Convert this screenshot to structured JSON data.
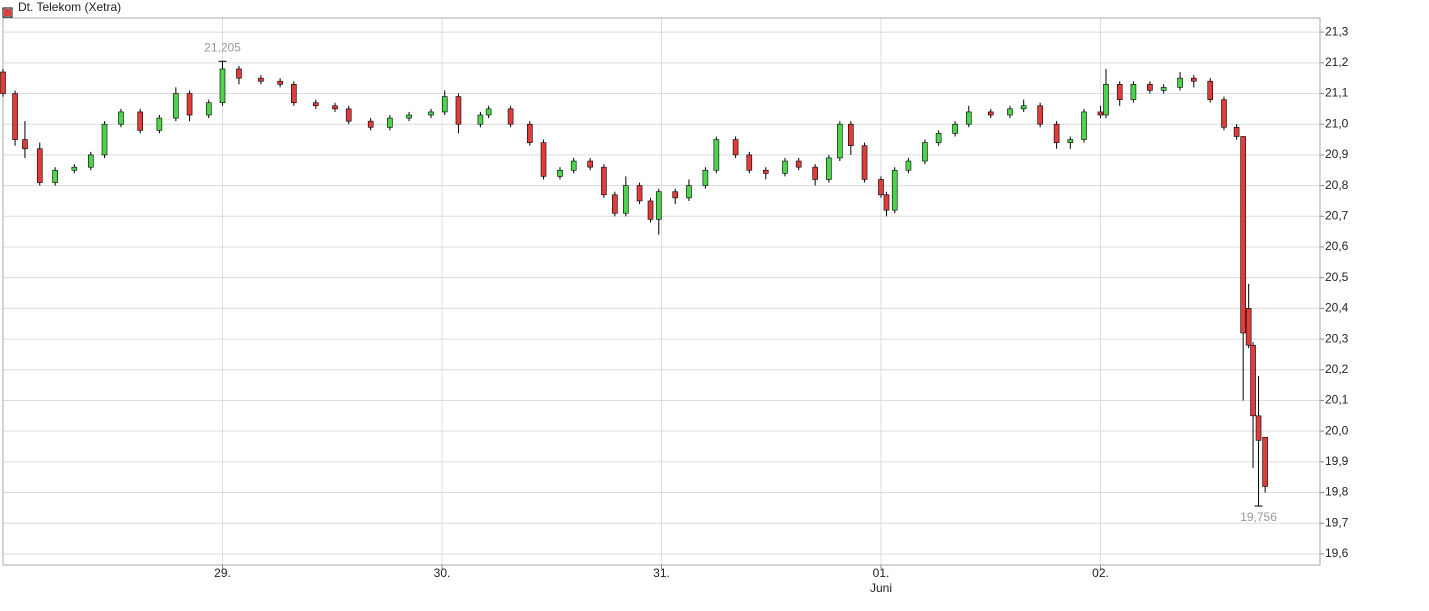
{
  "chart_data": {
    "type": "candlestick",
    "name": "Dt. Telekom (Xetra)",
    "legend_color": "#e03c3c",
    "color_up": "#4cd44c",
    "color_down": "#e03c3c",
    "grid": true,
    "x": [
      0,
      2.2,
      4,
      6.7,
      9.5,
      13,
      16,
      18.5,
      21.5,
      25,
      28.5,
      31.5,
      34,
      37.5,
      40,
      43,
      47,
      50.5,
      53,
      57,
      60.5,
      63,
      67,
      70.5,
      74,
      78,
      80.5,
      83,
      87,
      88.5,
      92.5,
      96,
      98.5,
      101.5,
      104,
      107,
      109.5,
      111.5,
      113.5,
      116,
      118,
      119.5,
      122.5,
      125,
      128,
      130,
      133.5,
      136,
      139,
      142.5,
      145,
      148,
      150.5,
      152.5,
      154.5,
      157,
      160,
      161,
      162.5,
      165,
      168,
      170.5,
      173.5,
      176,
      180,
      183.5,
      186,
      189,
      192,
      194.5,
      197,
      200,
      201,
      203.5,
      206,
      209,
      211.5,
      214.5,
      217,
      220,
      222.5,
      224.8,
      226,
      227,
      227.8,
      228.8,
      230
    ],
    "open": [
      21.17,
      21.1,
      20.95,
      20.92,
      20.81,
      20.85,
      20.86,
      20.9,
      21.0,
      21.04,
      20.98,
      21.02,
      21.1,
      21.03,
      21.07,
      21.18,
      21.15,
      21.14,
      21.13,
      21.07,
      21.06,
      21.05,
      21.01,
      20.99,
      21.02,
      21.03,
      21.04,
      21.09,
      21.0,
      21.03,
      21.05,
      21.0,
      20.94,
      20.83,
      20.85,
      20.88,
      20.86,
      20.77,
      20.71,
      20.8,
      20.75,
      20.69,
      20.78,
      20.76,
      20.8,
      20.85,
      20.95,
      20.9,
      20.85,
      20.84,
      20.88,
      20.86,
      20.82,
      20.89,
      21.0,
      20.93,
      20.82,
      20.77,
      20.72,
      20.85,
      20.88,
      20.94,
      20.97,
      21.0,
      21.04,
      21.03,
      21.05,
      21.06,
      21.0,
      20.94,
      20.95,
      21.04,
      21.03,
      21.13,
      21.08,
      21.13,
      21.11,
      21.12,
      21.15,
      21.14,
      21.08,
      20.99,
      20.96,
      20.4,
      20.28,
      20.05,
      19.98
    ],
    "high": [
      21.18,
      21.11,
      21.01,
      20.94,
      20.86,
      20.87,
      20.91,
      21.01,
      21.05,
      21.05,
      21.03,
      21.12,
      21.11,
      21.08,
      21.205,
      21.19,
      21.16,
      21.15,
      21.14,
      21.08,
      21.07,
      21.06,
      21.02,
      21.03,
      21.04,
      21.05,
      21.11,
      21.1,
      21.04,
      21.06,
      21.06,
      21.01,
      20.95,
      20.86,
      20.89,
      20.89,
      20.87,
      20.78,
      20.83,
      20.81,
      20.76,
      20.79,
      20.79,
      20.82,
      20.86,
      20.96,
      20.96,
      20.91,
      20.86,
      20.89,
      20.89,
      20.87,
      20.9,
      21.01,
      21.01,
      20.94,
      20.83,
      20.78,
      20.86,
      20.89,
      20.95,
      20.98,
      21.01,
      21.06,
      21.05,
      21.06,
      21.08,
      21.07,
      21.01,
      20.96,
      21.05,
      21.06,
      21.18,
      21.14,
      21.14,
      21.14,
      21.13,
      21.17,
      21.16,
      21.15,
      21.09,
      21.0,
      20.96,
      20.48,
      20.29,
      20.18,
      19.98
    ],
    "low": [
      21.09,
      20.93,
      20.89,
      20.8,
      20.8,
      20.84,
      20.85,
      20.89,
      20.99,
      20.97,
      20.97,
      21.01,
      21.01,
      21.02,
      21.06,
      21.13,
      21.13,
      21.12,
      21.06,
      21.05,
      21.04,
      21.0,
      20.98,
      20.98,
      21.01,
      21.02,
      21.03,
      20.97,
      20.99,
      21.02,
      20.99,
      20.93,
      20.82,
      20.82,
      20.84,
      20.85,
      20.76,
      20.7,
      20.7,
      20.74,
      20.68,
      20.64,
      20.74,
      20.75,
      20.79,
      20.84,
      20.89,
      20.84,
      20.82,
      20.83,
      20.85,
      20.8,
      20.81,
      20.88,
      20.9,
      20.81,
      20.76,
      20.7,
      20.71,
      20.84,
      20.87,
      20.93,
      20.96,
      20.99,
      21.02,
      21.02,
      21.04,
      20.99,
      20.92,
      20.92,
      20.94,
      21.02,
      21.02,
      21.06,
      21.07,
      21.1,
      21.1,
      21.11,
      21.12,
      21.07,
      20.98,
      20.95,
      20.1,
      20.27,
      19.88,
      19.756,
      19.8
    ],
    "close": [
      21.1,
      20.95,
      20.92,
      20.81,
      20.85,
      20.86,
      20.9,
      21.0,
      21.04,
      20.98,
      21.02,
      21.1,
      21.03,
      21.07,
      21.18,
      21.15,
      21.14,
      21.13,
      21.07,
      21.06,
      21.05,
      21.01,
      20.99,
      21.02,
      21.03,
      21.04,
      21.09,
      21.0,
      21.03,
      21.05,
      21.0,
      20.94,
      20.83,
      20.85,
      20.88,
      20.86,
      20.77,
      20.71,
      20.8,
      20.75,
      20.69,
      20.78,
      20.76,
      20.8,
      20.85,
      20.95,
      20.9,
      20.85,
      20.84,
      20.88,
      20.86,
      20.82,
      20.89,
      21.0,
      20.93,
      20.82,
      20.77,
      20.72,
      20.85,
      20.88,
      20.94,
      20.97,
      21.0,
      21.04,
      21.03,
      21.05,
      21.06,
      21.0,
      20.94,
      20.95,
      21.04,
      21.03,
      21.13,
      21.08,
      21.13,
      21.11,
      21.12,
      21.15,
      21.14,
      21.08,
      20.99,
      20.96,
      20.32,
      20.28,
      20.05,
      19.97,
      19.82
    ],
    "xlim": [
      0,
      240
    ],
    "ylim": [
      19.564,
      21.346
    ],
    "xticks": [
      {
        "value": 40,
        "label": "29."
      },
      {
        "value": 80,
        "label": "30."
      },
      {
        "value": 120,
        "label": "31."
      },
      {
        "value": 160,
        "label": "01."
      },
      {
        "value": 200,
        "label": "02."
      }
    ],
    "month_label": "Juni",
    "yticks": [
      {
        "value": 19.6,
        "label": "19,6"
      },
      {
        "value": 19.7,
        "label": "19,7"
      },
      {
        "value": 19.8,
        "label": "19,8"
      },
      {
        "value": 19.9,
        "label": "19,9"
      },
      {
        "value": 20.0,
        "label": "20,0"
      },
      {
        "value": 20.1,
        "label": "20,1"
      },
      {
        "value": 20.2,
        "label": "20,2"
      },
      {
        "value": 20.3,
        "label": "20,3"
      },
      {
        "value": 20.4,
        "label": "20,4"
      },
      {
        "value": 20.5,
        "label": "20,5"
      },
      {
        "value": 20.6,
        "label": "20,6"
      },
      {
        "value": 20.7,
        "label": "20,7"
      },
      {
        "value": 20.8,
        "label": "20,8"
      },
      {
        "value": 20.9,
        "label": "20,9"
      },
      {
        "value": 21.0,
        "label": "21,0"
      },
      {
        "value": 21.1,
        "label": "21,1"
      },
      {
        "value": 21.2,
        "label": "21,2"
      },
      {
        "value": 21.3,
        "label": "21,3"
      }
    ],
    "annotations": [
      {
        "x": 40,
        "value": 21.205,
        "label": "21,205",
        "position": "above"
      },
      {
        "x": 228.8,
        "value": 19.756,
        "label": "19,756",
        "position": "below"
      }
    ]
  }
}
